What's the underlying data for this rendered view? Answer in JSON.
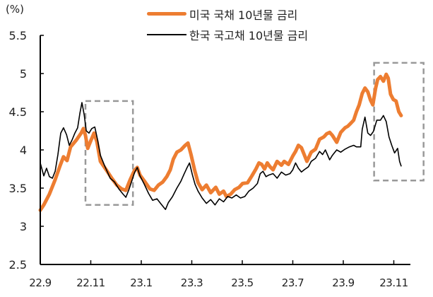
{
  "chart_data": {
    "type": "line",
    "title": "",
    "unit_label": "(%)",
    "xlabel": "",
    "ylabel": "(%)",
    "ylim": [
      2.5,
      5.5
    ],
    "yticks": [
      2.5,
      3,
      3.5,
      4,
      4.5,
      5,
      5.5
    ],
    "ytick_labels": [
      "2.5",
      "3",
      "3.5",
      "4",
      "4.5",
      "5",
      "5.5"
    ],
    "xticks": [
      0,
      2,
      4,
      6,
      8,
      10,
      12,
      14
    ],
    "xtick_labels": [
      "22.9",
      "22.11",
      "23.1",
      "23.3",
      "23.5",
      "23.7",
      "23.9",
      "23.11"
    ],
    "x_unit": "months since 22.9",
    "grid": false,
    "legend_position": "top-center",
    "series": [
      {
        "name": "미국 국채 10년물 금리",
        "color": "#ed7d31",
        "line_width": 5,
        "points": [
          [
            0,
            3.21
          ],
          [
            0.14,
            3.28
          ],
          [
            0.36,
            3.42
          ],
          [
            0.59,
            3.61
          ],
          [
            0.78,
            3.79
          ],
          [
            0.92,
            3.91
          ],
          [
            1.06,
            3.86
          ],
          [
            1.2,
            4.04
          ],
          [
            1.43,
            4.13
          ],
          [
            1.62,
            4.22
          ],
          [
            1.71,
            4.28
          ],
          [
            1.79,
            4.19
          ],
          [
            1.88,
            4.02
          ],
          [
            1.99,
            4.11
          ],
          [
            2.13,
            4.22
          ],
          [
            2.24,
            4.11
          ],
          [
            2.38,
            3.85
          ],
          [
            2.61,
            3.74
          ],
          [
            2.83,
            3.63
          ],
          [
            3.03,
            3.54
          ],
          [
            3.22,
            3.49
          ],
          [
            3.39,
            3.47
          ],
          [
            3.56,
            3.61
          ],
          [
            3.73,
            3.73
          ],
          [
            3.84,
            3.77
          ],
          [
            3.95,
            3.67
          ],
          [
            4.15,
            3.58
          ],
          [
            4.34,
            3.49
          ],
          [
            4.51,
            3.47
          ],
          [
            4.68,
            3.54
          ],
          [
            4.85,
            3.58
          ],
          [
            5.01,
            3.65
          ],
          [
            5.15,
            3.74
          ],
          [
            5.27,
            3.88
          ],
          [
            5.41,
            3.97
          ],
          [
            5.57,
            4.0
          ],
          [
            5.74,
            4.06
          ],
          [
            5.85,
            4.09
          ],
          [
            5.97,
            3.94
          ],
          [
            6.11,
            3.74
          ],
          [
            6.25,
            3.57
          ],
          [
            6.41,
            3.48
          ],
          [
            6.58,
            3.54
          ],
          [
            6.75,
            3.44
          ],
          [
            6.95,
            3.51
          ],
          [
            7.09,
            3.42
          ],
          [
            7.26,
            3.46
          ],
          [
            7.37,
            3.39
          ],
          [
            7.54,
            3.42
          ],
          [
            7.7,
            3.48
          ],
          [
            7.87,
            3.51
          ],
          [
            8.01,
            3.56
          ],
          [
            8.21,
            3.57
          ],
          [
            8.38,
            3.66
          ],
          [
            8.54,
            3.75
          ],
          [
            8.66,
            3.83
          ],
          [
            8.77,
            3.81
          ],
          [
            8.88,
            3.75
          ],
          [
            8.99,
            3.83
          ],
          [
            9.1,
            3.78
          ],
          [
            9.22,
            3.74
          ],
          [
            9.38,
            3.85
          ],
          [
            9.55,
            3.8
          ],
          [
            9.66,
            3.85
          ],
          [
            9.83,
            3.81
          ],
          [
            10.0,
            3.92
          ],
          [
            10.11,
            3.98
          ],
          [
            10.22,
            4.06
          ],
          [
            10.34,
            4.03
          ],
          [
            10.45,
            3.94
          ],
          [
            10.56,
            3.85
          ],
          [
            10.73,
            3.97
          ],
          [
            10.9,
            4.01
          ],
          [
            11.06,
            4.14
          ],
          [
            11.23,
            4.17
          ],
          [
            11.34,
            4.21
          ],
          [
            11.46,
            4.23
          ],
          [
            11.57,
            4.19
          ],
          [
            11.74,
            4.1
          ],
          [
            11.9,
            4.23
          ],
          [
            12.07,
            4.29
          ],
          [
            12.18,
            4.31
          ],
          [
            12.3,
            4.35
          ],
          [
            12.41,
            4.39
          ],
          [
            12.52,
            4.5
          ],
          [
            12.63,
            4.59
          ],
          [
            12.75,
            4.74
          ],
          [
            12.86,
            4.81
          ],
          [
            12.97,
            4.76
          ],
          [
            13.08,
            4.65
          ],
          [
            13.17,
            4.59
          ],
          [
            13.28,
            4.81
          ],
          [
            13.36,
            4.92
          ],
          [
            13.47,
            4.96
          ],
          [
            13.59,
            4.9
          ],
          [
            13.7,
            4.99
          ],
          [
            13.78,
            4.94
          ],
          [
            13.87,
            4.73
          ],
          [
            13.98,
            4.66
          ],
          [
            14.09,
            4.64
          ],
          [
            14.2,
            4.5
          ],
          [
            14.29,
            4.45
          ]
        ]
      },
      {
        "name": "한국 국고채 10년물 금리",
        "color": "#000000",
        "line_width": 1.6,
        "points": [
          [
            0,
            3.83
          ],
          [
            0.14,
            3.66
          ],
          [
            0.25,
            3.76
          ],
          [
            0.36,
            3.65
          ],
          [
            0.48,
            3.63
          ],
          [
            0.59,
            3.72
          ],
          [
            0.7,
            3.94
          ],
          [
            0.81,
            4.22
          ],
          [
            0.92,
            4.29
          ],
          [
            1.04,
            4.2
          ],
          [
            1.15,
            4.06
          ],
          [
            1.26,
            4.13
          ],
          [
            1.37,
            4.22
          ],
          [
            1.48,
            4.29
          ],
          [
            1.57,
            4.48
          ],
          [
            1.65,
            4.62
          ],
          [
            1.74,
            4.46
          ],
          [
            1.82,
            4.25
          ],
          [
            1.93,
            4.22
          ],
          [
            2.04,
            4.28
          ],
          [
            2.16,
            4.3
          ],
          [
            2.27,
            4.13
          ],
          [
            2.38,
            3.93
          ],
          [
            2.55,
            3.79
          ],
          [
            2.77,
            3.63
          ],
          [
            2.94,
            3.58
          ],
          [
            3.11,
            3.49
          ],
          [
            3.28,
            3.42
          ],
          [
            3.39,
            3.38
          ],
          [
            3.5,
            3.47
          ],
          [
            3.61,
            3.58
          ],
          [
            3.73,
            3.7
          ],
          [
            3.84,
            3.77
          ],
          [
            3.95,
            3.66
          ],
          [
            4.12,
            3.55
          ],
          [
            4.29,
            3.43
          ],
          [
            4.45,
            3.34
          ],
          [
            4.62,
            3.36
          ],
          [
            4.79,
            3.29
          ],
          [
            4.96,
            3.22
          ],
          [
            5.07,
            3.31
          ],
          [
            5.24,
            3.39
          ],
          [
            5.41,
            3.5
          ],
          [
            5.57,
            3.59
          ],
          [
            5.69,
            3.68
          ],
          [
            5.8,
            3.76
          ],
          [
            5.91,
            3.83
          ],
          [
            6.02,
            3.68
          ],
          [
            6.13,
            3.55
          ],
          [
            6.25,
            3.46
          ],
          [
            6.41,
            3.37
          ],
          [
            6.58,
            3.3
          ],
          [
            6.75,
            3.35
          ],
          [
            6.92,
            3.28
          ],
          [
            7.09,
            3.36
          ],
          [
            7.26,
            3.32
          ],
          [
            7.42,
            3.39
          ],
          [
            7.59,
            3.37
          ],
          [
            7.76,
            3.41
          ],
          [
            7.93,
            3.37
          ],
          [
            8.1,
            3.39
          ],
          [
            8.26,
            3.46
          ],
          [
            8.43,
            3.5
          ],
          [
            8.6,
            3.56
          ],
          [
            8.71,
            3.69
          ],
          [
            8.82,
            3.72
          ],
          [
            8.94,
            3.65
          ],
          [
            9.05,
            3.67
          ],
          [
            9.22,
            3.69
          ],
          [
            9.38,
            3.63
          ],
          [
            9.55,
            3.71
          ],
          [
            9.72,
            3.67
          ],
          [
            9.89,
            3.69
          ],
          [
            10.0,
            3.74
          ],
          [
            10.11,
            3.83
          ],
          [
            10.22,
            3.76
          ],
          [
            10.34,
            3.71
          ],
          [
            10.45,
            3.74
          ],
          [
            10.62,
            3.78
          ],
          [
            10.73,
            3.85
          ],
          [
            10.9,
            3.89
          ],
          [
            11.06,
            3.98
          ],
          [
            11.18,
            3.94
          ],
          [
            11.29,
            4.0
          ],
          [
            11.46,
            3.87
          ],
          [
            11.57,
            3.93
          ],
          [
            11.74,
            4.0
          ],
          [
            11.9,
            3.97
          ],
          [
            12.07,
            4.01
          ],
          [
            12.24,
            4.04
          ],
          [
            12.41,
            4.06
          ],
          [
            12.52,
            4.04
          ],
          [
            12.69,
            4.04
          ],
          [
            12.75,
            4.27
          ],
          [
            12.86,
            4.43
          ],
          [
            12.97,
            4.22
          ],
          [
            13.08,
            4.19
          ],
          [
            13.19,
            4.24
          ],
          [
            13.33,
            4.39
          ],
          [
            13.47,
            4.39
          ],
          [
            13.59,
            4.45
          ],
          [
            13.7,
            4.37
          ],
          [
            13.81,
            4.17
          ],
          [
            13.92,
            4.06
          ],
          [
            14.03,
            3.96
          ],
          [
            14.15,
            4.02
          ],
          [
            14.23,
            3.85
          ],
          [
            14.29,
            3.79
          ]
        ]
      }
    ],
    "annotations": [
      {
        "type": "dashed-box",
        "x_range": [
          1.79,
          3.67
        ],
        "y_range": [
          3.28,
          4.64
        ],
        "color": "#999999"
      },
      {
        "type": "dashed-box",
        "x_range": [
          13.22,
          15.18
        ],
        "y_range": [
          3.6,
          5.14
        ],
        "color": "#999999"
      }
    ]
  },
  "legend": {
    "us_label": "미국 국채 10년물 금리",
    "kr_label": "한국 국고채 10년물 금리"
  }
}
